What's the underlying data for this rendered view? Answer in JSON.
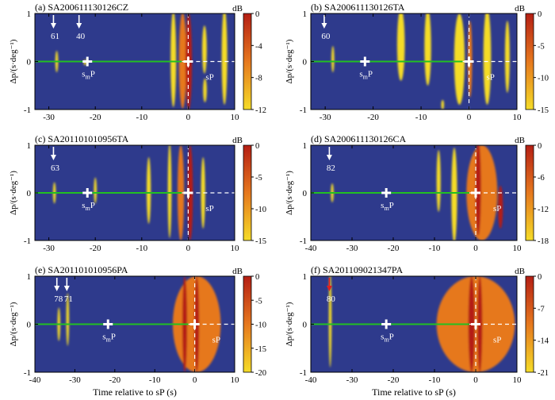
{
  "figure": {
    "x_axis_label": "Time relative to sP (s)",
    "y_axis_label": "Δp/(s·deg⁻¹)",
    "colorbar_unit": "dB",
    "marker_labels": {
      "smp_base": "s",
      "smp_sub": "m",
      "smp_tail": "P",
      "sp": "sP"
    },
    "colors": {
      "background": "#2e3a8c",
      "high": "#b41e14",
      "mid": "#e6781e",
      "low": "#f5dc28",
      "green_line": "#22c022",
      "marker": "#ffffff"
    }
  },
  "chart_data": [
    {
      "type": "heatmap",
      "panel": "a",
      "title": "(a) SA200611130126CZ",
      "xlim": [
        -33,
        10
      ],
      "xticks": [
        -30,
        -20,
        -10,
        0,
        10
      ],
      "ylim": [
        -1,
        1
      ],
      "yticks": [
        -1,
        0,
        1
      ],
      "colorbar": {
        "range": [
          -12,
          0
        ],
        "ticks": [
          0,
          -4,
          -8,
          -12
        ]
      },
      "sp_time": 0,
      "smp_time": -21.7,
      "arrows": [
        {
          "label": "61",
          "x": -29
        },
        {
          "label": "40",
          "x": -23.5
        }
      ],
      "features": [
        {
          "x": -28.3,
          "y": 0,
          "w": 0.6,
          "h": 0.45,
          "level": "low"
        },
        {
          "x": -22.2,
          "y": -0.02,
          "w": 0.4,
          "h": 0.12,
          "level": "low"
        },
        {
          "x": -3.2,
          "y": 0.05,
          "w": 1.2,
          "h": 2.0,
          "level": "low"
        },
        {
          "x": -1.2,
          "y": 0.02,
          "w": 1.6,
          "h": 2.0,
          "level": "mid"
        },
        {
          "x": 0.1,
          "y": 0,
          "w": 1.4,
          "h": 2.0,
          "level": "high"
        },
        {
          "x": 3.5,
          "y": 0.25,
          "w": 1.0,
          "h": 1.0,
          "level": "low"
        },
        {
          "x": 3.6,
          "y": -0.6,
          "w": 0.8,
          "h": 0.5,
          "level": "low"
        },
        {
          "x": 7.8,
          "y": 0.1,
          "w": 1.2,
          "h": 2.0,
          "level": "low"
        }
      ]
    },
    {
      "type": "heatmap",
      "panel": "b",
      "title": "(b) SA200611130126TA",
      "xlim": [
        -33,
        10
      ],
      "xticks": [
        -30,
        -20,
        -10,
        0,
        10
      ],
      "ylim": [
        -1,
        1
      ],
      "yticks": [
        -1,
        0,
        1
      ],
      "colorbar": {
        "range": [
          -15,
          0
        ],
        "ticks": [
          0,
          -5,
          -10,
          -15
        ]
      },
      "sp_time": 0,
      "smp_time": -21.7,
      "arrows": [
        {
          "label": "60",
          "x": -30.2
        }
      ],
      "features": [
        {
          "x": -28.4,
          "y": 0.05,
          "w": 0.6,
          "h": 0.55,
          "level": "low"
        },
        {
          "x": -14.2,
          "y": 0.35,
          "w": 1.6,
          "h": 1.5,
          "level": "low"
        },
        {
          "x": -8.6,
          "y": 0.3,
          "w": 1.4,
          "h": 1.6,
          "level": "low"
        },
        {
          "x": -2.0,
          "y": 0.05,
          "w": 2.2,
          "h": 1.9,
          "level": "low"
        },
        {
          "x": 0.2,
          "y": 0.05,
          "w": 0.9,
          "h": 1.6,
          "level": "mid"
        },
        {
          "x": 3.8,
          "y": 0.1,
          "w": 1.6,
          "h": 2.0,
          "level": "low"
        },
        {
          "x": 8.0,
          "y": 0.1,
          "w": 1.0,
          "h": 1.5,
          "level": "low"
        },
        {
          "x": -5.5,
          "y": -0.9,
          "w": 0.6,
          "h": 0.2,
          "level": "low"
        }
      ]
    },
    {
      "type": "heatmap",
      "panel": "c",
      "title": "(c) SA201101010956TA",
      "xlim": [
        -33,
        10
      ],
      "xticks": [
        -30,
        -20,
        -10,
        0,
        10
      ],
      "ylim": [
        -1,
        1
      ],
      "yticks": [
        -1,
        0,
        1
      ],
      "colorbar": {
        "range": [
          -15,
          0
        ],
        "ticks": [
          0,
          -5,
          -10,
          -15
        ]
      },
      "sp_time": 0,
      "smp_time": -21.7,
      "arrows": [
        {
          "label": "63",
          "x": -29
        }
      ],
      "features": [
        {
          "x": -28.8,
          "y": 0,
          "w": 0.5,
          "h": 0.45,
          "level": "low"
        },
        {
          "x": -20.0,
          "y": 0.05,
          "w": 0.5,
          "h": 0.55,
          "level": "low"
        },
        {
          "x": -8.5,
          "y": 0.05,
          "w": 0.9,
          "h": 1.4,
          "level": "low"
        },
        {
          "x": -4.0,
          "y": 0.05,
          "w": 0.8,
          "h": 2.0,
          "level": "low"
        },
        {
          "x": -1.6,
          "y": 0.0,
          "w": 1.4,
          "h": 2.0,
          "level": "mid"
        },
        {
          "x": 0.4,
          "y": 0.0,
          "w": 1.2,
          "h": 2.0,
          "level": "high"
        },
        {
          "x": 3.2,
          "y": 0.0,
          "w": 0.9,
          "h": 1.5,
          "level": "low"
        }
      ]
    },
    {
      "type": "heatmap",
      "panel": "d",
      "title": "(d) SA200611130126CA",
      "xlim": [
        -40,
        10
      ],
      "xticks": [
        -40,
        -30,
        -20,
        -10,
        0,
        10
      ],
      "ylim": [
        -1,
        1
      ],
      "yticks": [
        -1,
        0,
        1
      ],
      "colorbar": {
        "range": [
          -18,
          0
        ],
        "ticks": [
          0,
          -6,
          -12,
          -18
        ]
      },
      "sp_time": 0,
      "smp_time": -21.7,
      "arrows": [
        {
          "label": "82",
          "x": -35.5
        }
      ],
      "features": [
        {
          "x": -34.8,
          "y": 0,
          "w": 0.6,
          "h": 0.4,
          "level": "low"
        },
        {
          "x": -9.0,
          "y": 0.25,
          "w": 1.0,
          "h": 1.3,
          "level": "low"
        },
        {
          "x": -5.2,
          "y": -0.05,
          "w": 1.4,
          "h": 2.0,
          "level": "low"
        },
        {
          "x": 1.5,
          "y": 0.0,
          "w": 7.5,
          "h": 2.0,
          "level": "mid"
        },
        {
          "x": 0.6,
          "y": 0.1,
          "w": 1.4,
          "h": 2.0,
          "level": "high"
        },
        {
          "x": 6.0,
          "y": -0.3,
          "w": 1.2,
          "h": 0.9,
          "level": "high"
        }
      ]
    },
    {
      "type": "heatmap",
      "panel": "e",
      "title": "(e) SA201101010956PA",
      "xlim": [
        -40,
        10
      ],
      "xticks": [
        -40,
        -30,
        -20,
        -10,
        0,
        10
      ],
      "ylim": [
        -1,
        1
      ],
      "yticks": [
        -1,
        0,
        1
      ],
      "colorbar": {
        "range": [
          -20,
          0
        ],
        "ticks": [
          0,
          -5,
          -10,
          -15,
          -20
        ]
      },
      "sp_time": 0,
      "smp_time": -21.7,
      "arrows": [
        {
          "label": "78",
          "x": -34.5
        },
        {
          "label": "71",
          "x": -32.0
        }
      ],
      "features": [
        {
          "x": -34.0,
          "y": 0.0,
          "w": 0.5,
          "h": 0.7,
          "level": "low"
        },
        {
          "x": -31.8,
          "y": 0.1,
          "w": 0.7,
          "h": 1.1,
          "level": "low"
        },
        {
          "x": 0.5,
          "y": 0.0,
          "w": 12.0,
          "h": 2.0,
          "level": "mid"
        },
        {
          "x": -2.5,
          "y": 0.0,
          "w": 1.2,
          "h": 2.0,
          "level": "high"
        },
        {
          "x": 0.5,
          "y": 0.0,
          "w": 1.2,
          "h": 2.0,
          "level": "high"
        }
      ]
    },
    {
      "type": "heatmap",
      "panel": "f",
      "title": "(f) SA201109021347PA",
      "xlim": [
        -40,
        10
      ],
      "xticks": [
        -40,
        -30,
        -20,
        -10,
        0,
        10
      ],
      "ylim": [
        -1,
        1
      ],
      "yticks": [
        -1,
        0,
        1
      ],
      "colorbar": {
        "range": [
          -21,
          0
        ],
        "ticks": [
          0,
          -7,
          -14,
          -21
        ]
      },
      "sp_time": 0,
      "smp_time": -21.7,
      "arrows": [
        {
          "label": "80",
          "x": -35.5,
          "color": "red"
        }
      ],
      "features": [
        {
          "x": -35.3,
          "y": 0.1,
          "w": 0.6,
          "h": 2.0,
          "level": "low"
        },
        {
          "x": 0.0,
          "y": 0.0,
          "w": 19.0,
          "h": 2.0,
          "level": "mid"
        },
        {
          "x": -1.0,
          "y": 0.0,
          "w": 1.6,
          "h": 2.0,
          "level": "high"
        },
        {
          "x": 1.0,
          "y": 0.0,
          "w": 1.2,
          "h": 2.0,
          "level": "high"
        }
      ]
    }
  ]
}
